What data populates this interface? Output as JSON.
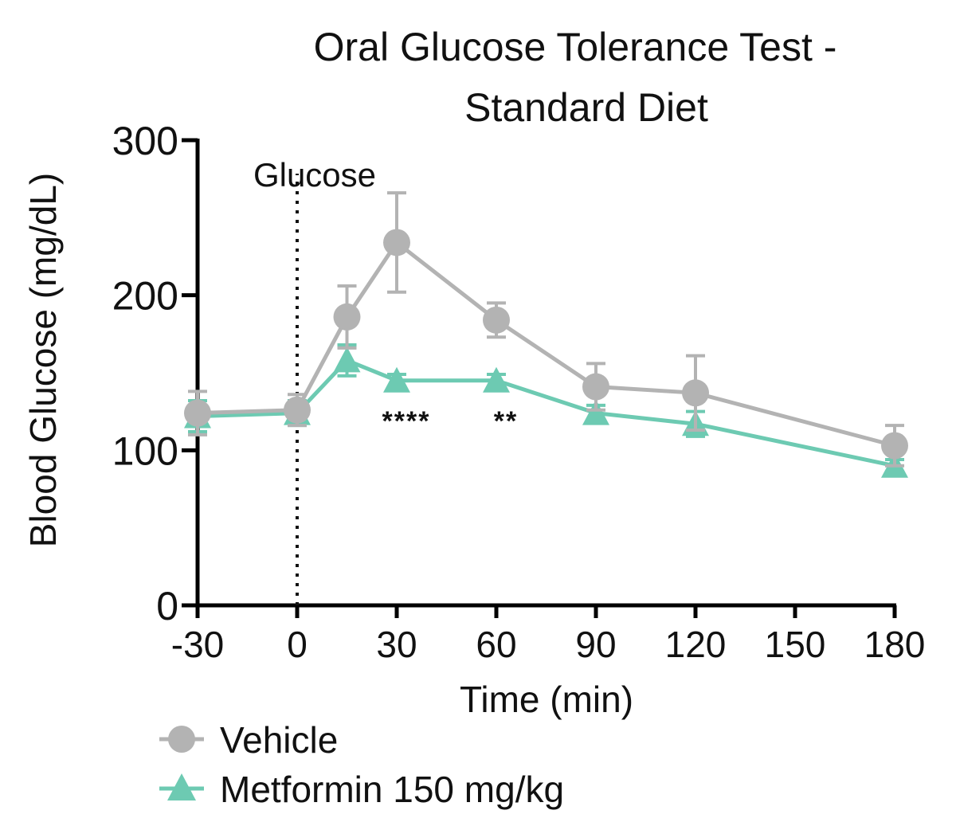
{
  "chart_data": {
    "type": "line",
    "title_line1": "Oral Glucose Tolerance Test -",
    "title_line2": "Standard Diet",
    "xlabel": "Time (min)",
    "ylabel": "Blood Glucose (mg/dL)",
    "xlim": [
      -30,
      180
    ],
    "ylim": [
      0,
      300
    ],
    "x_ticks": [
      -30,
      0,
      30,
      60,
      90,
      120,
      150,
      180
    ],
    "y_ticks": [
      0,
      100,
      200,
      300
    ],
    "annotation_line": {
      "x": 0,
      "label": "Glucose"
    },
    "series": [
      {
        "name": "Vehicle",
        "color": "#b3b3b3",
        "marker": "circle",
        "points": [
          {
            "x": -30,
            "y": 124,
            "err": 14
          },
          {
            "x": 0,
            "y": 126,
            "err": 10
          },
          {
            "x": 15,
            "y": 186,
            "err": 20
          },
          {
            "x": 30,
            "y": 234,
            "err": 32
          },
          {
            "x": 60,
            "y": 184,
            "err": 11
          },
          {
            "x": 90,
            "y": 141,
            "err": 15
          },
          {
            "x": 120,
            "y": 137,
            "err": 24
          },
          {
            "x": 180,
            "y": 103,
            "err": 13
          }
        ]
      },
      {
        "name": "Metformin 150 mg/kg",
        "color": "#6dcab2",
        "marker": "triangle",
        "points": [
          {
            "x": -30,
            "y": 122,
            "err": 10
          },
          {
            "x": 0,
            "y": 124,
            "err": 8
          },
          {
            "x": 15,
            "y": 158,
            "err": 10
          },
          {
            "x": 30,
            "y": 145,
            "err": 4
          },
          {
            "x": 60,
            "y": 145,
            "err": 4
          },
          {
            "x": 90,
            "y": 124,
            "err": 5
          },
          {
            "x": 120,
            "y": 117,
            "err": 8
          },
          {
            "x": 180,
            "y": 90,
            "err": 4
          }
        ]
      }
    ],
    "significance": [
      {
        "x": 30,
        "label": "****"
      },
      {
        "x": 60,
        "label": "**"
      }
    ],
    "legend_position": "bottom-left"
  }
}
